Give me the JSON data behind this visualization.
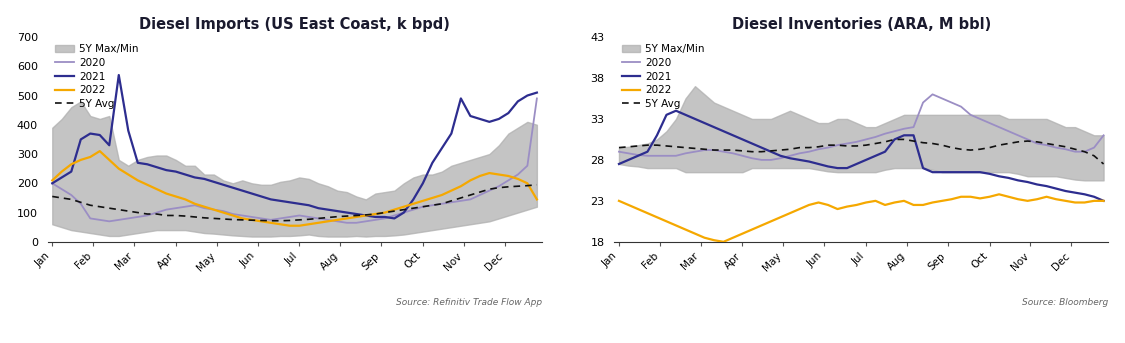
{
  "chart1": {
    "title": "Diesel Imports (US East Coast, k bpd)",
    "source": "Source: Refinitiv Trade Flow App",
    "months": [
      "Jan",
      "Feb",
      "Mar",
      "Apr",
      "May",
      "Jun",
      "Jul",
      "Aug",
      "Sep",
      "Oct",
      "Nov",
      "Dec"
    ],
    "month_positions": [
      0,
      4.3,
      8.6,
      13,
      17.3,
      21.6,
      26,
      30.3,
      34.6,
      39,
      43.3,
      47.6
    ],
    "band_max": [
      390,
      420,
      460,
      480,
      430,
      420,
      430,
      280,
      260,
      280,
      290,
      295,
      295,
      280,
      260,
      260,
      230,
      230,
      210,
      200,
      210,
      200,
      195,
      195,
      205,
      210,
      220,
      215,
      200,
      190,
      175,
      170,
      155,
      145,
      165,
      170,
      175,
      200,
      220,
      230,
      230,
      240,
      260,
      270,
      280,
      290,
      300,
      330,
      370,
      390,
      410,
      400
    ],
    "band_min": [
      60,
      50,
      40,
      35,
      30,
      25,
      20,
      20,
      25,
      30,
      35,
      40,
      40,
      40,
      40,
      35,
      30,
      28,
      25,
      22,
      20,
      18,
      18,
      18,
      20,
      20,
      22,
      25,
      20,
      18,
      18,
      18,
      20,
      18,
      20,
      20,
      22,
      25,
      30,
      35,
      40,
      45,
      50,
      55,
      60,
      65,
      70,
      80,
      90,
      100,
      110,
      120
    ],
    "y2020": [
      200,
      180,
      160,
      130,
      80,
      75,
      70,
      75,
      80,
      85,
      90,
      100,
      110,
      115,
      120,
      125,
      115,
      110,
      105,
      95,
      90,
      85,
      80,
      75,
      80,
      85,
      90,
      85,
      80,
      75,
      70,
      65,
      65,
      70,
      75,
      80,
      90,
      100,
      110,
      120,
      125,
      130,
      135,
      140,
      145,
      160,
      175,
      190,
      210,
      230,
      260,
      490
    ],
    "y2021": [
      200,
      220,
      240,
      350,
      370,
      365,
      330,
      570,
      380,
      270,
      265,
      255,
      245,
      240,
      230,
      220,
      215,
      205,
      195,
      185,
      175,
      165,
      155,
      145,
      140,
      135,
      130,
      125,
      115,
      110,
      105,
      100,
      95,
      90,
      85,
      85,
      80,
      100,
      145,
      200,
      270,
      320,
      370,
      490,
      430,
      420,
      410,
      420,
      440,
      480,
      500,
      510
    ],
    "y2022": [
      210,
      240,
      265,
      280,
      290,
      310,
      280,
      250,
      230,
      210,
      195,
      180,
      165,
      155,
      145,
      130,
      120,
      110,
      100,
      90,
      80,
      75,
      70,
      65,
      60,
      55,
      55,
      60,
      65,
      70,
      75,
      80,
      85,
      90,
      95,
      100,
      110,
      120,
      130,
      140,
      150,
      160,
      175,
      190,
      210,
      225,
      235,
      230,
      225,
      215,
      200,
      145
    ],
    "avg5y": [
      155,
      150,
      145,
      135,
      125,
      120,
      115,
      110,
      105,
      100,
      95,
      95,
      90,
      90,
      88,
      85,
      82,
      80,
      78,
      76,
      75,
      74,
      73,
      72,
      72,
      73,
      75,
      77,
      80,
      83,
      86,
      88,
      90,
      92,
      95,
      100,
      105,
      110,
      115,
      120,
      125,
      130,
      140,
      150,
      160,
      170,
      180,
      185,
      188,
      190,
      192,
      195
    ],
    "ylim": [
      0,
      700
    ],
    "yticks": [
      0,
      100,
      200,
      300,
      400,
      500,
      600,
      700
    ],
    "color_2020": "#9b8ec4",
    "color_2021": "#2d2d8f",
    "color_2022": "#f5a800",
    "color_band": "#b0b0b0",
    "color_avg": "#111111"
  },
  "chart2": {
    "title": "Diesel Inventories (ARA, M bbl)",
    "source": "Source: Bloomberg",
    "months": [
      "Jan",
      "Feb",
      "Mar",
      "Apr",
      "May",
      "Jun",
      "Jul",
      "Aug",
      "Sep",
      "Oct",
      "Nov",
      "Dec"
    ],
    "month_positions": [
      0,
      4.3,
      8.6,
      13,
      17.3,
      21.6,
      26,
      30.3,
      34.6,
      39,
      43.3,
      47.6
    ],
    "band_max": [
      29.5,
      29.6,
      29.8,
      30.0,
      30.5,
      31.5,
      33.0,
      35.5,
      37.0,
      36.0,
      35.0,
      34.5,
      34.0,
      33.5,
      33.0,
      33.0,
      33.0,
      33.5,
      34.0,
      33.5,
      33.0,
      32.5,
      32.5,
      33.0,
      33.0,
      32.5,
      32.0,
      32.0,
      32.5,
      33.0,
      33.5,
      33.5,
      33.5,
      33.5,
      33.5,
      33.5,
      33.5,
      33.5,
      33.5,
      33.5,
      33.5,
      33.0,
      33.0,
      33.0,
      33.0,
      33.0,
      32.5,
      32.0,
      32.0,
      31.5,
      31.0,
      31.0
    ],
    "band_min": [
      27.5,
      27.3,
      27.2,
      27.0,
      27.0,
      27.0,
      27.0,
      26.5,
      26.5,
      26.5,
      26.5,
      26.5,
      26.5,
      26.5,
      27.0,
      27.0,
      27.0,
      27.0,
      27.0,
      27.0,
      27.0,
      26.8,
      26.6,
      26.5,
      26.5,
      26.5,
      26.5,
      26.5,
      26.8,
      27.0,
      27.0,
      27.0,
      27.0,
      26.8,
      26.5,
      26.5,
      26.5,
      26.5,
      26.5,
      26.5,
      26.5,
      26.5,
      26.3,
      26.0,
      26.0,
      26.0,
      26.0,
      25.8,
      25.6,
      25.5,
      25.5,
      25.5
    ],
    "y2020": [
      29.0,
      28.8,
      28.6,
      28.5,
      28.5,
      28.5,
      28.5,
      28.8,
      29.0,
      29.2,
      29.2,
      29.0,
      28.8,
      28.5,
      28.2,
      28.0,
      28.0,
      28.2,
      28.5,
      28.8,
      29.0,
      29.3,
      29.5,
      29.8,
      30.0,
      30.2,
      30.5,
      30.8,
      31.2,
      31.5,
      31.8,
      32.0,
      35.0,
      36.0,
      35.5,
      35.0,
      34.5,
      33.5,
      33.0,
      32.5,
      32.0,
      31.5,
      31.0,
      30.5,
      30.0,
      29.8,
      29.5,
      29.3,
      29.0,
      29.0,
      29.5,
      31.0
    ],
    "y2021": [
      27.5,
      28.0,
      28.5,
      29.0,
      31.0,
      33.5,
      34.0,
      33.5,
      33.0,
      32.5,
      32.0,
      31.5,
      31.0,
      30.5,
      30.0,
      29.5,
      29.0,
      28.5,
      28.2,
      28.0,
      27.8,
      27.5,
      27.2,
      27.0,
      27.0,
      27.5,
      28.0,
      28.5,
      29.0,
      30.5,
      31.0,
      31.0,
      27.0,
      26.5,
      26.5,
      26.5,
      26.5,
      26.5,
      26.5,
      26.3,
      26.0,
      25.8,
      25.5,
      25.3,
      25.0,
      24.8,
      24.5,
      24.2,
      24.0,
      23.8,
      23.5,
      23.0
    ],
    "y2022": [
      23.0,
      22.5,
      22.0,
      21.5,
      21.0,
      20.5,
      20.0,
      19.5,
      19.0,
      18.5,
      18.2,
      18.0,
      18.5,
      19.0,
      19.5,
      20.0,
      20.5,
      21.0,
      21.5,
      22.0,
      22.5,
      22.8,
      22.5,
      22.0,
      22.3,
      22.5,
      22.8,
      23.0,
      22.5,
      22.8,
      23.0,
      22.5,
      22.5,
      22.8,
      23.0,
      23.2,
      23.5,
      23.5,
      23.3,
      23.5,
      23.8,
      23.5,
      23.2,
      23.0,
      23.2,
      23.5,
      23.2,
      23.0,
      22.8,
      22.8,
      23.0,
      23.0
    ],
    "avg5y": [
      29.5,
      29.6,
      29.7,
      29.8,
      29.8,
      29.7,
      29.6,
      29.5,
      29.4,
      29.3,
      29.2,
      29.2,
      29.2,
      29.1,
      29.0,
      29.0,
      29.1,
      29.2,
      29.3,
      29.5,
      29.5,
      29.6,
      29.8,
      29.8,
      29.7,
      29.7,
      29.8,
      30.0,
      30.2,
      30.5,
      30.5,
      30.3,
      30.1,
      30.0,
      29.8,
      29.5,
      29.3,
      29.2,
      29.3,
      29.5,
      29.8,
      30.0,
      30.2,
      30.3,
      30.2,
      30.0,
      29.8,
      29.6,
      29.3,
      29.0,
      28.5,
      27.5
    ],
    "ylim": [
      18,
      43
    ],
    "yticks": [
      18,
      23,
      28,
      33,
      38,
      43
    ],
    "color_2020": "#9b8ec4",
    "color_2021": "#2d2d8f",
    "color_2022": "#f5a800",
    "color_band": "#b0b0b0",
    "color_avg": "#111111"
  },
  "fig_bg": "#ffffff",
  "legend_labels": [
    "5Y Max/Min",
    "2020",
    "2021",
    "2022",
    "5Y Avg"
  ]
}
